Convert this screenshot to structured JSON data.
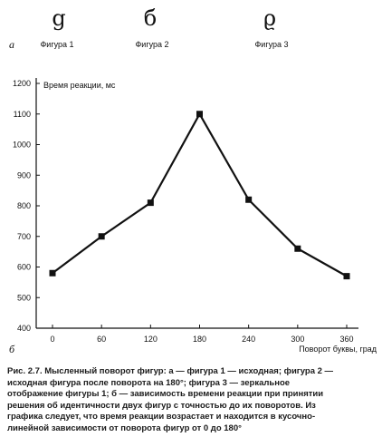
{
  "panel_a_label": "а",
  "panel_b_label": "б",
  "figures": [
    {
      "glyph": "g",
      "label": "Фигура 1"
    },
    {
      "glyph": "б",
      "label": "Фигура 2"
    },
    {
      "glyph": "ϱ",
      "label": "Фигура 3"
    }
  ],
  "chart_data": {
    "type": "line",
    "xlabel": "Поворот буквы, град",
    "ylabel": "Время реакции, мс",
    "categories": [
      0,
      60,
      120,
      180,
      240,
      300,
      360
    ],
    "values": [
      580,
      700,
      810,
      1100,
      820,
      660,
      570
    ],
    "ylim": [
      400,
      1200
    ],
    "yticks": [
      400,
      500,
      600,
      700,
      800,
      900,
      1000,
      1100,
      1200
    ],
    "grid": false,
    "line_color": "#111111",
    "marker": "square"
  },
  "caption_lines": [
    "Рис. 2.7. Мысленный поворот фигур: а — фигура 1 — исходная; фигура 2 —",
    "исходная фигура после поворота на 180°; фигура 3 — зеркальное",
    "отображение фигуры 1; б — зависимость времени реакции при принятии",
    "решения об идентичности двух фигур с точностью до их поворотов. Из",
    "графика следует, что время реакции возрастает и находится в кусочно-",
    "линейной зависимости от поворота фигур от 0 до 180°"
  ]
}
